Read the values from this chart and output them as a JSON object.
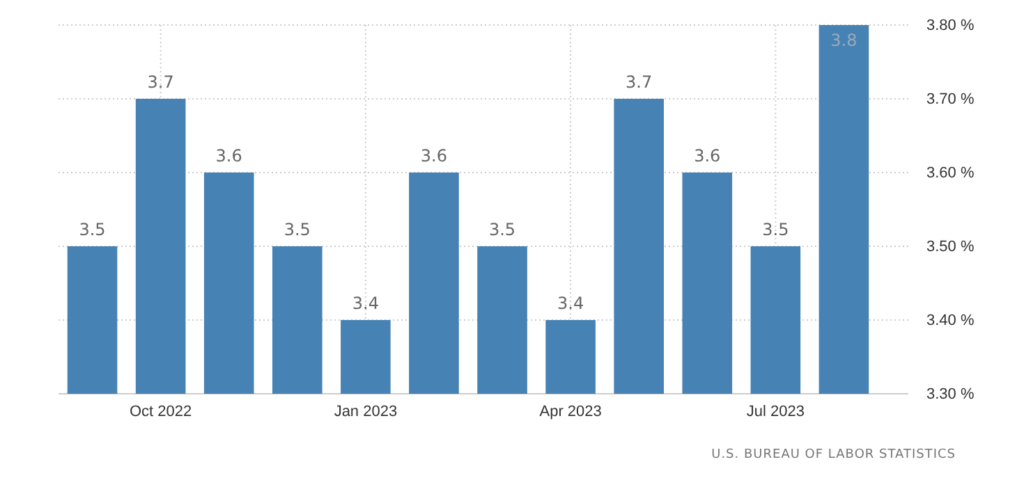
{
  "chart_data": {
    "type": "bar",
    "categories": [
      null,
      "Oct 2022",
      null,
      null,
      "Jan 2023",
      null,
      null,
      "Apr 2023",
      null,
      null,
      "Jul 2023",
      null
    ],
    "values": [
      3.5,
      3.7,
      3.6,
      3.5,
      3.4,
      3.6,
      3.5,
      3.4,
      3.7,
      3.6,
      3.5,
      3.8
    ],
    "color": "#4682b4",
    "ylim": [
      3.3,
      3.8
    ],
    "yticks": [
      {
        "value": 3.3,
        "label": "3.30 %"
      },
      {
        "value": 3.4,
        "label": "3.40 %"
      },
      {
        "value": 3.5,
        "label": "3.50 %"
      },
      {
        "value": 3.6,
        "label": "3.60 %"
      },
      {
        "value": 3.7,
        "label": "3.70 %"
      },
      {
        "value": 3.8,
        "label": "3.80 %"
      }
    ],
    "grid": true,
    "data_labels": true,
    "annotations": [
      "U.S. BUREAU OF LABOR STATISTICS"
    ]
  }
}
